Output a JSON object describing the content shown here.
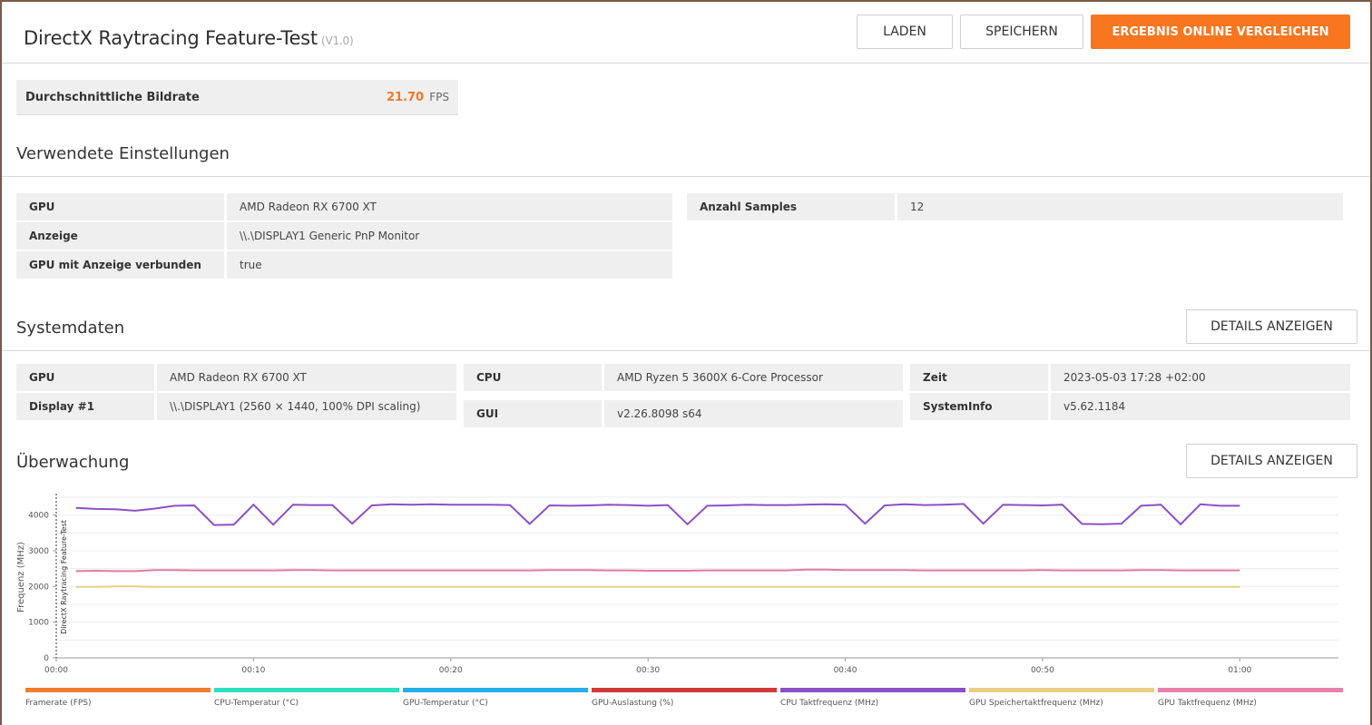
{
  "header": {
    "title": "DirectX Raytracing Feature-Test",
    "version": "(V1.0)",
    "buttons": {
      "load": "LADEN",
      "save": "SPEICHERN",
      "compare": "ERGEBNIS ONLINE VERGLEICHEN"
    }
  },
  "average": {
    "label": "Durchschnittliche Bildrate",
    "value": "21.70",
    "unit": "FPS"
  },
  "settings": {
    "title": "Verwendete Einstellungen",
    "rows": [
      {
        "key": "GPU",
        "value": "AMD Radeon RX 6700 XT"
      },
      {
        "key": "Anzeige",
        "value": "\\\\.\\DISPLAY1 Generic PnP Monitor"
      },
      {
        "key": "GPU mit Anzeige verbunden",
        "value": "true"
      }
    ],
    "right_rows": [
      {
        "key": "Anzahl Samples",
        "value": "12"
      }
    ]
  },
  "systemdata": {
    "title": "Systemdaten",
    "details_button": "DETAILS ANZEIGEN",
    "col1": [
      {
        "key": "GPU",
        "value": "AMD Radeon RX 6700 XT"
      },
      {
        "key": "Display #1",
        "value": "\\\\.\\DISPLAY1 (2560 × 1440, 100% DPI scaling)"
      }
    ],
    "col2": [
      {
        "key": "CPU",
        "value": "AMD Ryzen 5 3600X 6-Core Processor"
      },
      {
        "key": "GUI",
        "value": "v2.26.8098 s64"
      }
    ],
    "col3": [
      {
        "key": "Zeit",
        "value": "2023-05-03 17:28 +02:00"
      },
      {
        "key": "SystemInfo",
        "value": "v5.62.1184"
      }
    ]
  },
  "monitoring": {
    "title": "Überwachung",
    "details_button": "DETAILS ANZEIGEN"
  },
  "chart_data": {
    "type": "line",
    "ylabel": "Frequenz (MHz)",
    "marker_label": "DirectX Raytracing Feature-Test",
    "ylim": [
      0,
      4600
    ],
    "yticks": [
      0,
      1000,
      2000,
      3000,
      4000
    ],
    "xlim": [
      0,
      65
    ],
    "xticks": [
      0,
      10,
      20,
      30,
      40,
      50,
      60
    ],
    "xtick_labels": [
      "00:00",
      "00:10",
      "00:20",
      "00:30",
      "00:40",
      "00:50",
      "01:00"
    ],
    "grid": true,
    "x": [
      1,
      2,
      3,
      4,
      5,
      6,
      7,
      8,
      9,
      10,
      11,
      12,
      13,
      14,
      15,
      16,
      17,
      18,
      19,
      20,
      21,
      22,
      23,
      24,
      25,
      26,
      27,
      28,
      29,
      30,
      31,
      32,
      33,
      34,
      35,
      36,
      37,
      38,
      39,
      40,
      41,
      42,
      43,
      44,
      45,
      46,
      47,
      48,
      49,
      50,
      51,
      52,
      53,
      54,
      55,
      56,
      57,
      58,
      59,
      60
    ],
    "series": [
      {
        "name": "CPU Taktfrequenz (MHz)",
        "color": "#8e4fc6",
        "values": [
          4200,
          4170,
          4160,
          4120,
          4180,
          4260,
          4270,
          3720,
          3730,
          4290,
          3730,
          4290,
          4280,
          4280,
          3760,
          4270,
          4300,
          4290,
          4300,
          4290,
          4290,
          4290,
          4280,
          3750,
          4270,
          4260,
          4270,
          4290,
          4280,
          4260,
          4280,
          3740,
          4260,
          4270,
          4290,
          4280,
          4280,
          4290,
          4300,
          4290,
          3760,
          4270,
          4300,
          4280,
          4290,
          4310,
          3760,
          4290,
          4280,
          4270,
          4290,
          3750,
          3740,
          3760,
          4260,
          4290,
          3740,
          4300,
          4260,
          4260
        ]
      },
      {
        "name": "GPU Taktfrequenz (MHz)",
        "color": "#e07aa6",
        "values": [
          2430,
          2440,
          2430,
          2430,
          2460,
          2460,
          2450,
          2450,
          2450,
          2450,
          2450,
          2460,
          2460,
          2450,
          2450,
          2450,
          2450,
          2450,
          2450,
          2450,
          2450,
          2450,
          2450,
          2450,
          2460,
          2460,
          2460,
          2450,
          2450,
          2440,
          2440,
          2440,
          2450,
          2450,
          2450,
          2450,
          2450,
          2470,
          2470,
          2460,
          2460,
          2460,
          2460,
          2450,
          2450,
          2450,
          2450,
          2450,
          2450,
          2460,
          2450,
          2450,
          2450,
          2450,
          2460,
          2460,
          2450,
          2450,
          2450,
          2450
        ]
      },
      {
        "name": "GPU Speichertaktfrequenz (MHz)",
        "color": "#e8cf84",
        "values": [
          1990,
          1990,
          2000,
          2000,
          1990,
          1990,
          1990,
          1990,
          1990,
          1990,
          1990,
          1990,
          1990,
          1990,
          1990,
          1990,
          1990,
          1990,
          1990,
          1990,
          1990,
          1990,
          1990,
          1990,
          1990,
          1990,
          1990,
          1990,
          1990,
          1990,
          1990,
          1990,
          1990,
          1990,
          1990,
          1990,
          1990,
          1990,
          1990,
          1990,
          1990,
          1990,
          1990,
          1990,
          1990,
          1990,
          1990,
          1990,
          1990,
          1990,
          1990,
          1990,
          1990,
          1990,
          1990,
          1990,
          1990,
          1990,
          1990,
          1990
        ]
      }
    ],
    "legend": [
      {
        "label": "Framerate (FPS)",
        "color": "#f07f2e"
      },
      {
        "label": "CPU-Temperatur (°C)",
        "color": "#2de0bf"
      },
      {
        "label": "GPU-Temperatur (°C)",
        "color": "#26aee8"
      },
      {
        "label": "GPU-Auslastung (%)",
        "color": "#d03a3a"
      },
      {
        "label": "CPU Taktfrequenz (MHz)",
        "color": "#8e4fc6"
      },
      {
        "label": "GPU Speichertaktfrequenz (MHz)",
        "color": "#e8cf84"
      },
      {
        "label": "GPU Taktfrequenz (MHz)",
        "color": "#e882ad"
      }
    ]
  }
}
